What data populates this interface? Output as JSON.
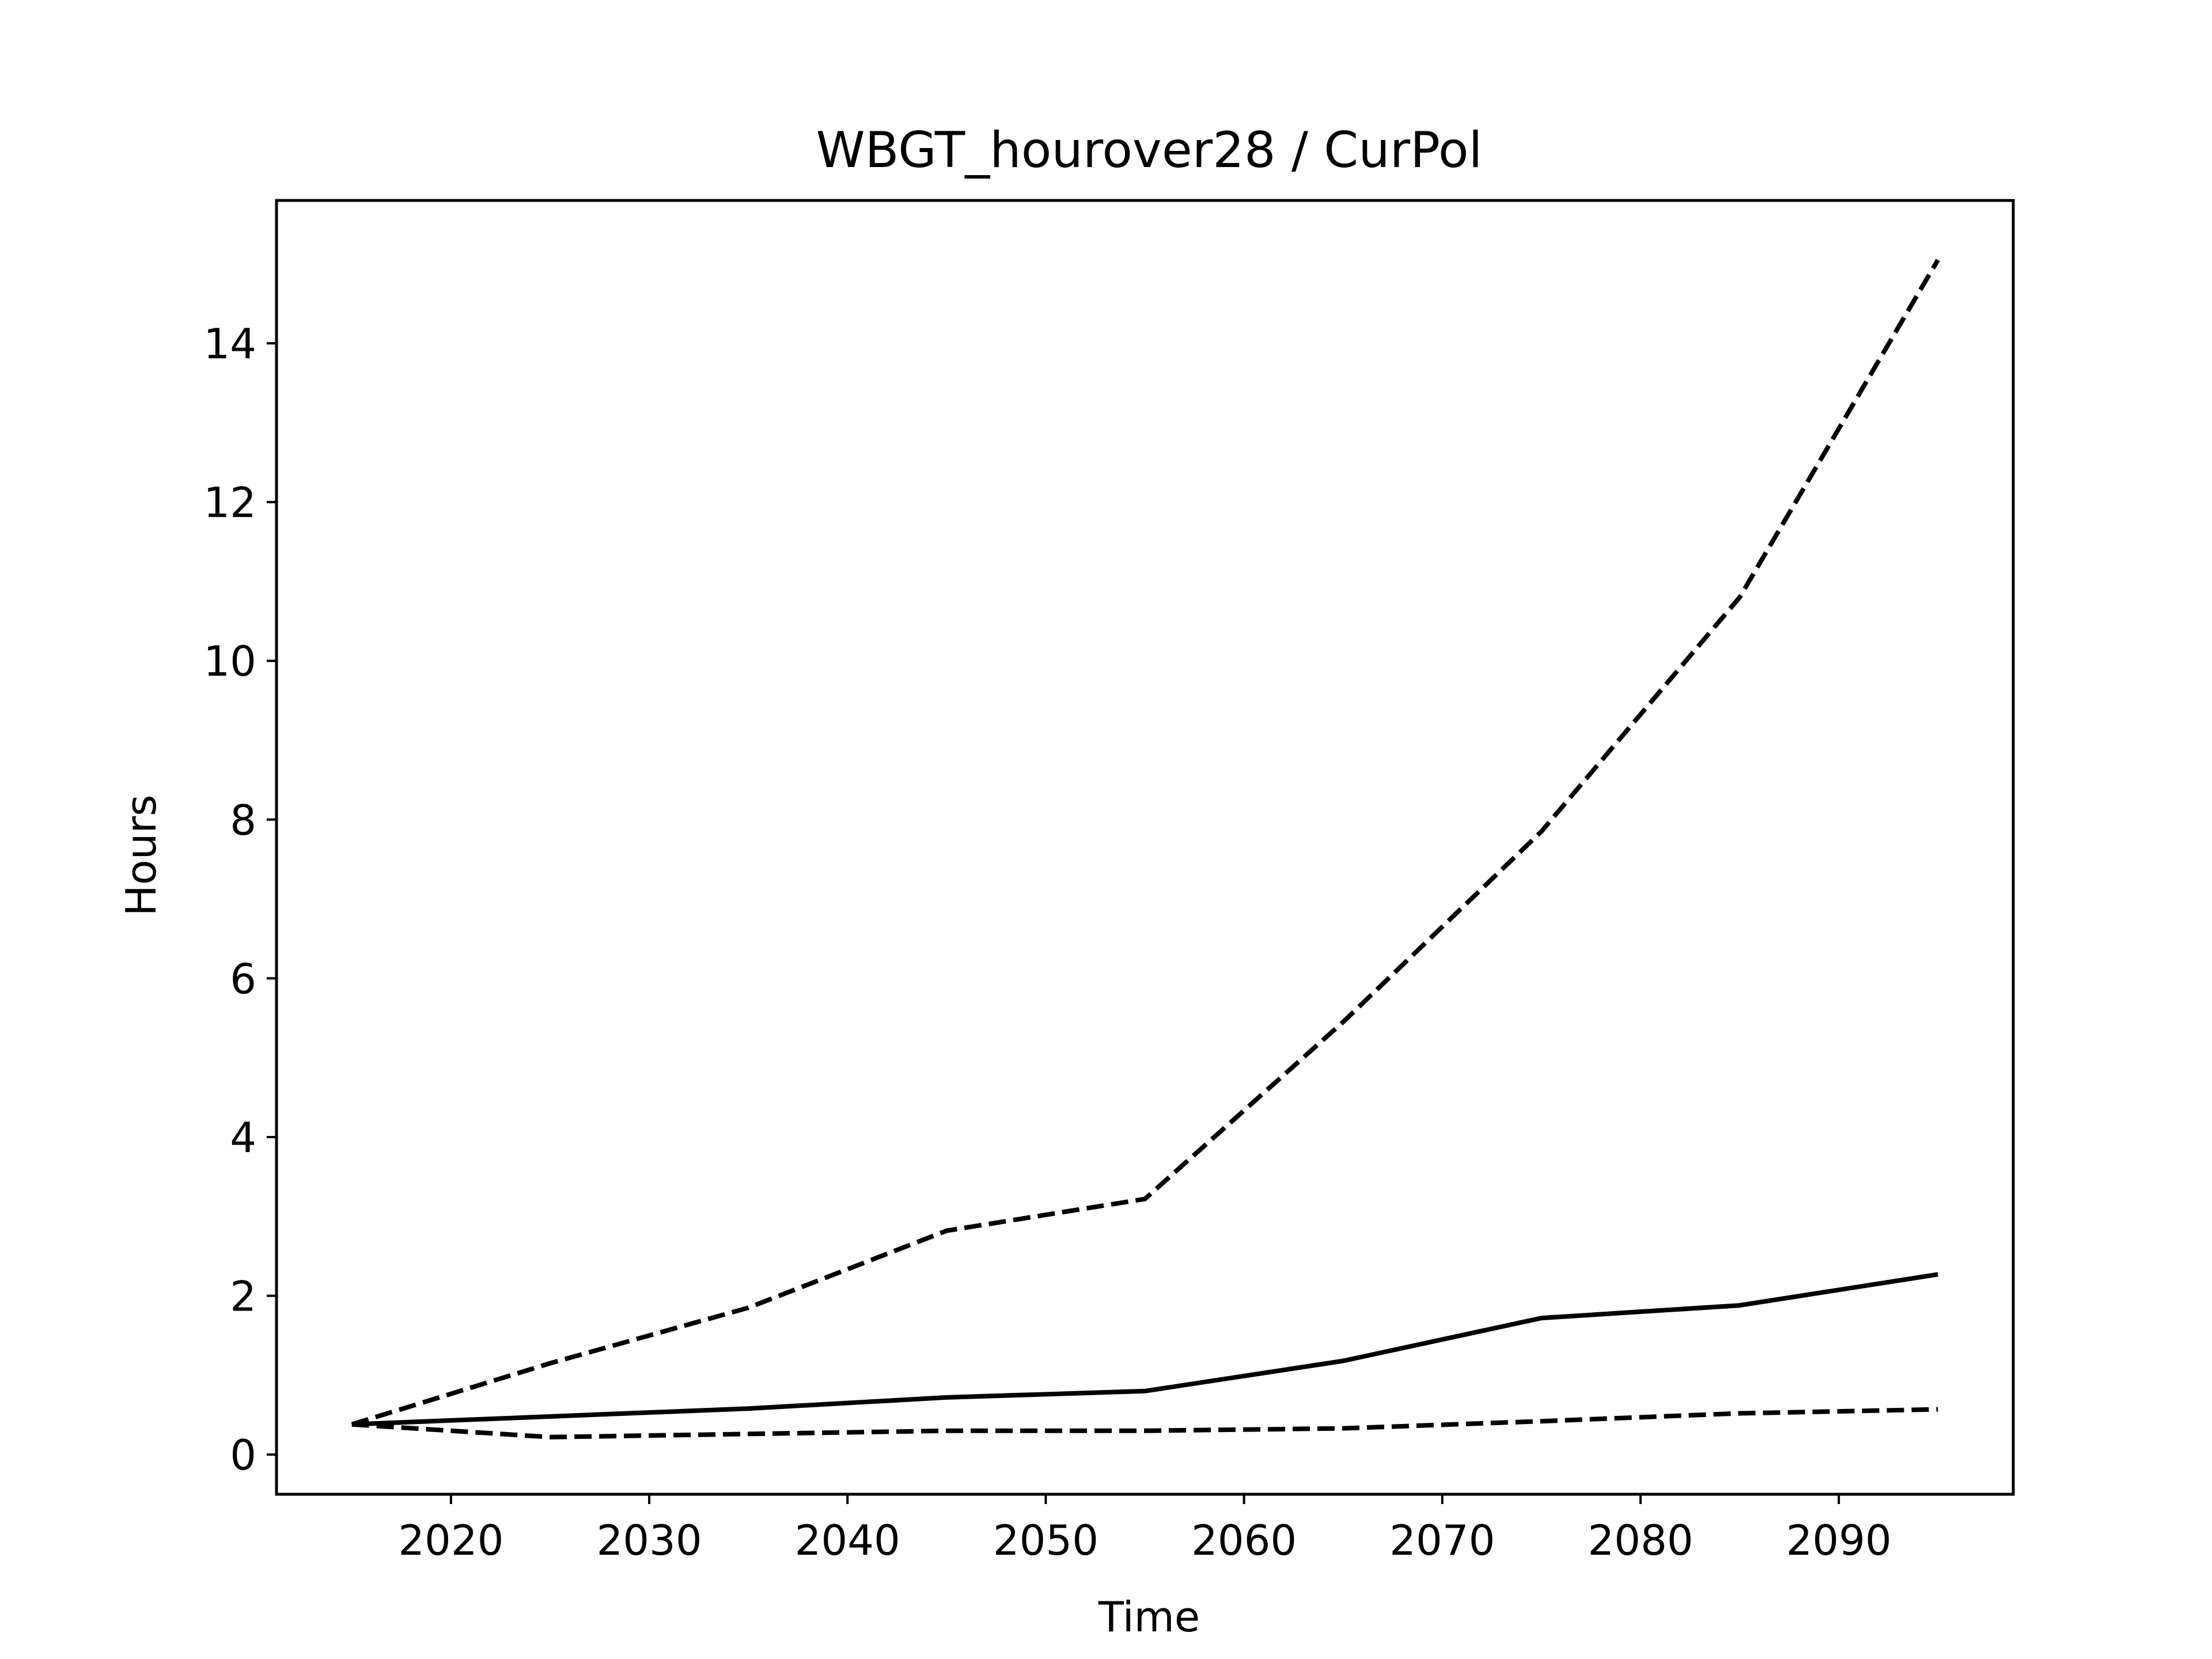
{
  "chart_data": {
    "type": "line",
    "title": "WBGT_hourover28 / CurPol",
    "xlabel": "Time",
    "ylabel": "Hours",
    "xlim": [
      2011.2,
      2098.8
    ],
    "ylim": [
      -0.5,
      15.8
    ],
    "xticks": [
      2020,
      2030,
      2040,
      2050,
      2060,
      2070,
      2080,
      2090
    ],
    "yticks": [
      0,
      2,
      4,
      6,
      8,
      10,
      12,
      14
    ],
    "x": [
      2015,
      2025,
      2035,
      2045,
      2055,
      2065,
      2075,
      2085,
      2095
    ],
    "grid": false,
    "legend": "none",
    "series": [
      {
        "style": "dashed",
        "color": "#000000",
        "values": [
          0.38,
          1.15,
          1.85,
          2.82,
          3.22,
          5.45,
          7.85,
          10.8,
          15.05
        ]
      },
      {
        "style": "solid",
        "color": "#000000",
        "values": [
          0.38,
          0.48,
          0.58,
          0.72,
          0.8,
          1.18,
          1.72,
          1.88,
          2.27
        ]
      },
      {
        "style": "dashed",
        "color": "#000000",
        "values": [
          0.38,
          0.22,
          0.26,
          0.3,
          0.3,
          0.33,
          0.42,
          0.52,
          0.57
        ]
      }
    ]
  }
}
